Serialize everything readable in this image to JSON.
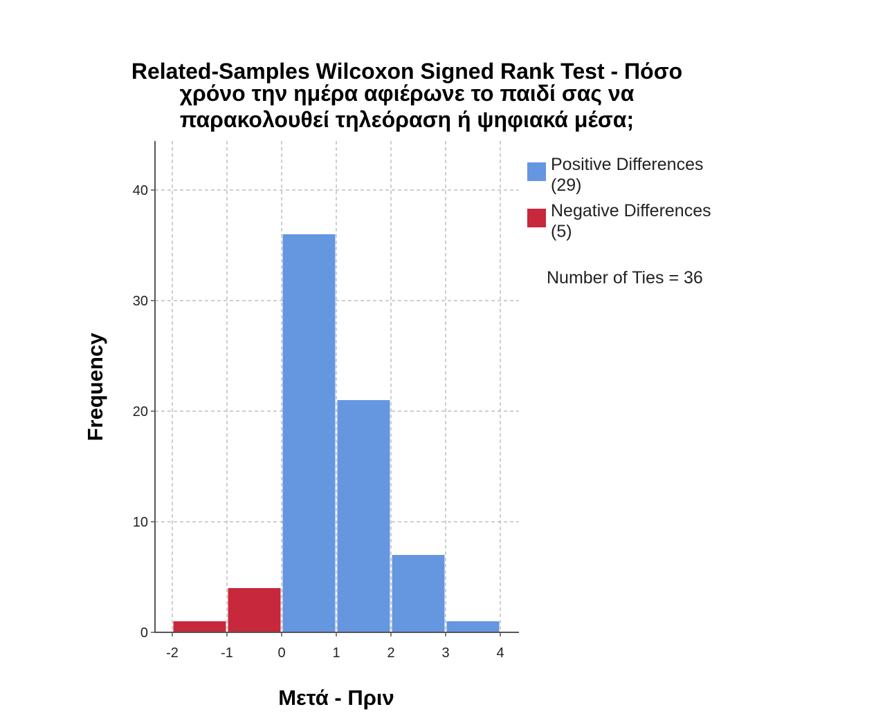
{
  "chart_data": {
    "type": "bar",
    "title_lines": [
      "Related-Samples Wilcoxon Signed Rank Test - Πόσο",
      "χρόνο την ημέρα αφιέρωνε το παιδί σας να",
      "παρακολουθεί τηλεόραση ή ψηφιακά μέσα;"
    ],
    "xlabel": "Μετά - Πριν",
    "ylabel": "Frequency",
    "x_ticks": [
      "-2",
      "-1",
      "0",
      "1",
      "2",
      "3",
      "4"
    ],
    "y_ticks": [
      "0",
      "10",
      "20",
      "30",
      "40"
    ],
    "xlim": [
      -2,
      4
    ],
    "ylim": [
      0,
      44
    ],
    "grid": true,
    "legend_position": "right",
    "series": [
      {
        "name": "Positive Differences",
        "legend_label_line1": "Positive Differences",
        "legend_label_line2": "(29)",
        "color": "#6596e0",
        "bins": [
          {
            "x0": 0,
            "x1": 1,
            "value": 36
          },
          {
            "x0": 1,
            "x1": 2,
            "value": 21
          },
          {
            "x0": 2,
            "x1": 3,
            "value": 7
          },
          {
            "x0": 3,
            "x1": 4,
            "value": 1
          }
        ]
      },
      {
        "name": "Negative Differences",
        "legend_label_line1": "Negative Differences",
        "legend_label_line2": "(5)",
        "color": "#c8283c",
        "bins": [
          {
            "x0": -2,
            "x1": -1,
            "value": 1
          },
          {
            "x0": -1,
            "x1": 0,
            "value": 4
          }
        ]
      }
    ],
    "ties_label": "Number of Ties = 36"
  }
}
